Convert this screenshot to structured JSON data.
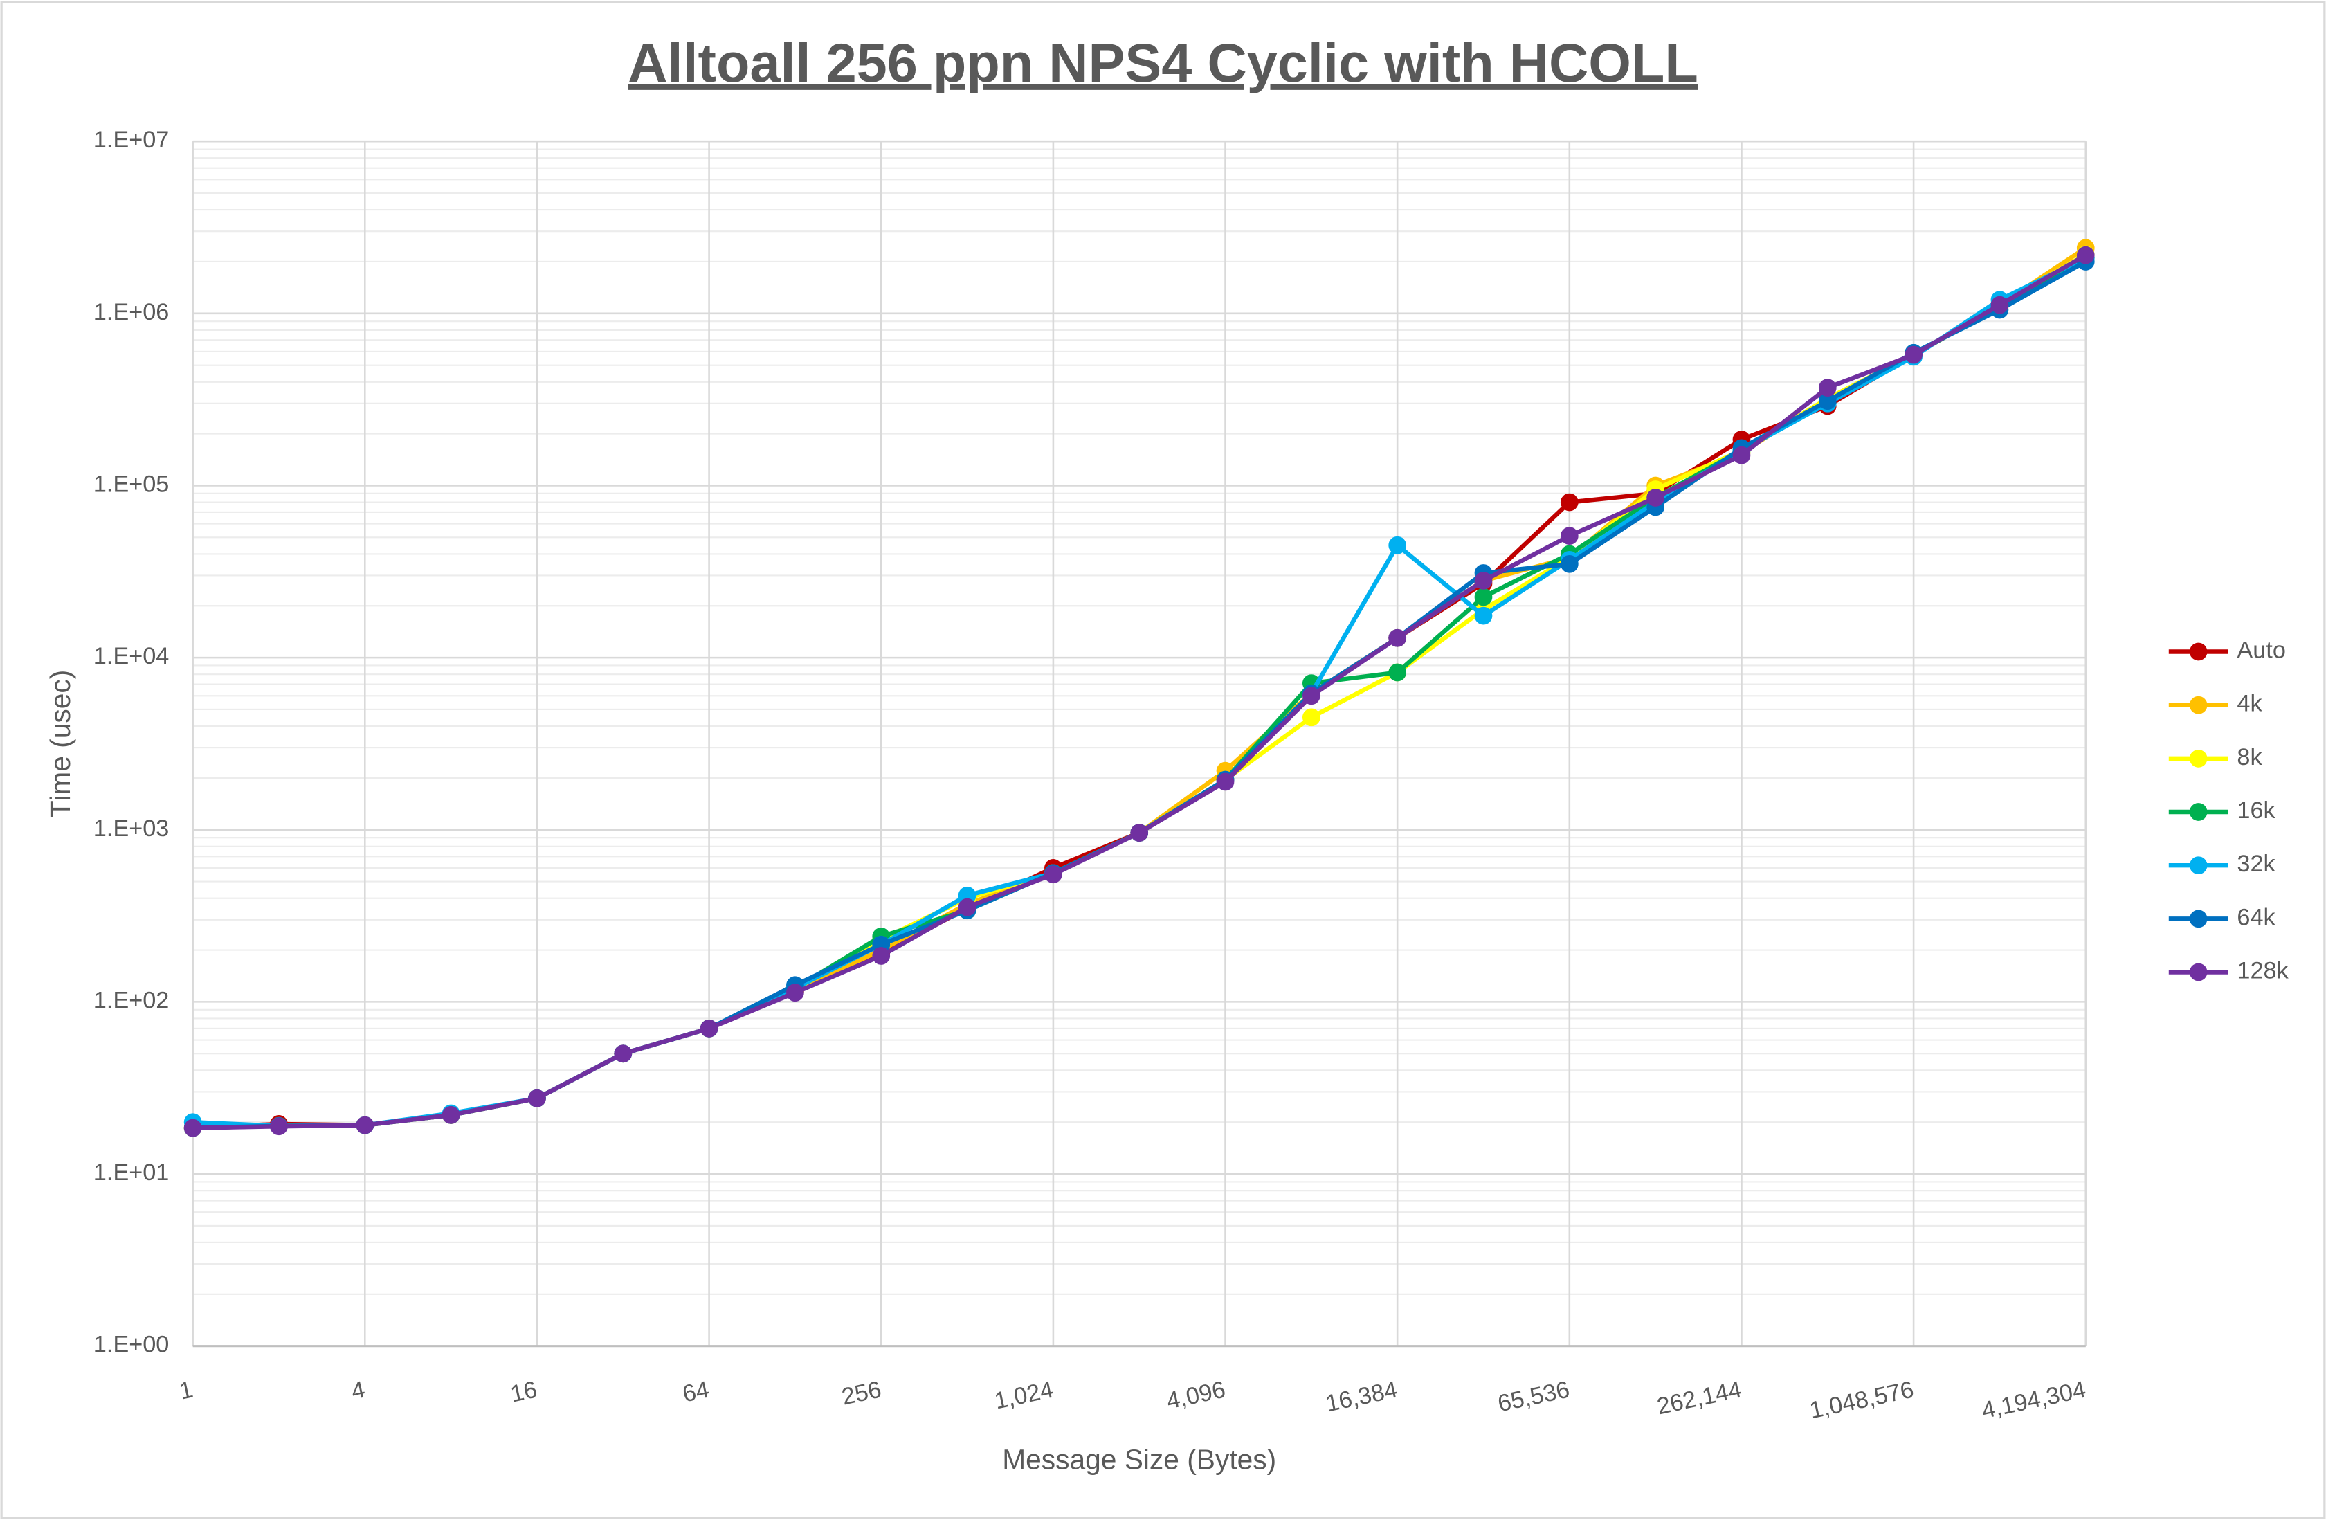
{
  "chart_data": {
    "type": "line",
    "title": "Alltoall 256 ppn NPS4 Cyclic with HCOLL",
    "x_label": "Message Size (Bytes)",
    "y_label": "Time (usec)",
    "x_log_base": 2,
    "y_log_base": 10,
    "grid": true,
    "minor_grid": true,
    "legend": "right",
    "x": [
      1,
      2,
      4,
      8,
      16,
      32,
      64,
      128,
      256,
      512,
      1024,
      2048,
      4096,
      8192,
      16384,
      32768,
      65536,
      131072,
      262144,
      524288,
      1048576,
      2097152,
      4194304
    ],
    "xlim": [
      1,
      4194304
    ],
    "xticks": [
      1,
      4,
      16,
      64,
      256,
      {
        "value": 1024,
        "label": "1,024"
      },
      {
        "value": 4096,
        "label": "4,096"
      },
      {
        "value": 16384,
        "label": "16,384"
      },
      {
        "value": 65536,
        "label": "65,536"
      },
      {
        "value": 262144,
        "label": "262,144"
      },
      {
        "value": 1048576,
        "label": "1,048,576"
      },
      {
        "value": 4194304,
        "label": "4,194,304"
      }
    ],
    "ylim": [
      1,
      10000000
    ],
    "yticks": [
      {
        "value": 1,
        "label": "1.E+00"
      },
      {
        "value": 10,
        "label": "1.E+01"
      },
      {
        "value": 100,
        "label": "1.E+02"
      },
      {
        "value": 1000,
        "label": "1.E+03"
      },
      {
        "value": 10000,
        "label": "1.E+04"
      },
      {
        "value": 100000,
        "label": "1.E+05"
      },
      {
        "value": 1000000,
        "label": "1.E+06"
      },
      {
        "value": 10000000,
        "label": "1.E+07"
      }
    ],
    "series": [
      {
        "name": "Auto",
        "color": "#c00000",
        "values": [
          18.5,
          19.5,
          19.2,
          22,
          27.5,
          50,
          70,
          115,
          190,
          350,
          600,
          960,
          1950,
          6200,
          13000,
          27000,
          80000,
          90000,
          185000,
          290000,
          575000,
          1100000,
          2100000
        ]
      },
      {
        "name": "4k",
        "color": "#ffc000",
        "values": [
          18.5,
          19,
          19.2,
          22,
          27.5,
          50,
          70,
          115,
          200,
          370,
          560,
          960,
          2200,
          6200,
          13000,
          28000,
          38000,
          100000,
          155000,
          320000,
          575000,
          1120000,
          2400000
        ]
      },
      {
        "name": "8k",
        "color": "#ffff00",
        "values": [
          18.5,
          19,
          19.2,
          22,
          27.5,
          50,
          70,
          118,
          230,
          400,
          560,
          960,
          1950,
          4500,
          8200,
          19000,
          38000,
          95000,
          160000,
          320000,
          575000,
          1120000,
          2200000
        ]
      },
      {
        "name": "16k",
        "color": "#00b050",
        "values": [
          18.5,
          19,
          19.2,
          22,
          27.5,
          50,
          70,
          120,
          240,
          340,
          560,
          960,
          1950,
          7100,
          8200,
          22500,
          40000,
          85000,
          160000,
          310000,
          575000,
          1100000,
          2100000
        ]
      },
      {
        "name": "32k",
        "color": "#00b0f0",
        "values": [
          20,
          19,
          19.2,
          22.5,
          27.5,
          50,
          70,
          120,
          215,
          415,
          560,
          960,
          1950,
          6200,
          45000,
          17500,
          37000,
          80000,
          160000,
          300000,
          560000,
          1200000,
          2100000
        ]
      },
      {
        "name": "64k",
        "color": "#0070c0",
        "values": [
          18.5,
          19,
          19.2,
          22,
          27.5,
          50,
          70,
          125,
          215,
          340,
          560,
          960,
          1950,
          6200,
          13000,
          31000,
          35000,
          75000,
          165000,
          310000,
          590000,
          1050000,
          2000000
        ]
      },
      {
        "name": "128k",
        "color": "#7030a0",
        "values": [
          18.5,
          18.9,
          19.2,
          22,
          27.5,
          50,
          70,
          113,
          185,
          355,
          550,
          960,
          1900,
          6000,
          13000,
          28000,
          51000,
          85000,
          150000,
          370000,
          575000,
          1120000,
          2180000
        ]
      }
    ]
  }
}
